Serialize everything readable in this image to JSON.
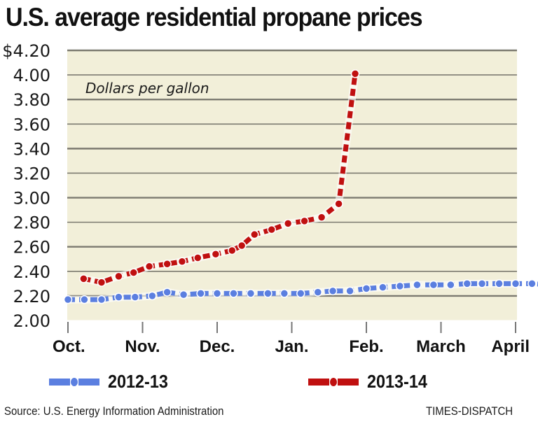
{
  "chart_data": {
    "type": "line",
    "title": "U.S. average residential propane prices",
    "unit_label": "Dollars per gallon",
    "xlabel": "",
    "ylabel": "Dollars per gallon",
    "ylim": [
      2.0,
      4.2
    ],
    "yticks": [
      2.0,
      2.2,
      2.4,
      2.6,
      2.8,
      3.0,
      3.2,
      3.4,
      3.6,
      3.8,
      4.0,
      4.2
    ],
    "ytick_labels": [
      "2.00",
      "2.20",
      "2.40",
      "2.60",
      "2.80",
      "3.00",
      "3.20",
      "3.40",
      "3.60",
      "3.80",
      "4.00",
      "$4.20"
    ],
    "x_months": [
      "Oct.",
      "Nov.",
      "Dec.",
      "Jan.",
      "Feb.",
      "March",
      "April"
    ],
    "x_unit": "months since Oct. 1",
    "xlim": [
      0,
      6
    ],
    "grid": true,
    "legend_position": "bottom",
    "series": [
      {
        "name": "2012-13",
        "color": "#5b7fe0",
        "x": [
          0.0,
          0.22,
          0.45,
          0.68,
          0.9,
          1.13,
          1.33,
          1.55,
          1.78,
          2.0,
          2.22,
          2.45,
          2.68,
          2.9,
          3.12,
          3.35,
          3.55,
          3.78,
          4.0,
          4.22,
          4.45,
          4.68,
          4.9,
          5.13,
          5.35,
          5.55,
          5.78,
          6.0,
          6.22,
          6.45,
          6.68
        ],
        "values": [
          2.17,
          2.17,
          2.17,
          2.19,
          2.19,
          2.2,
          2.23,
          2.21,
          2.22,
          2.22,
          2.22,
          2.22,
          2.22,
          2.22,
          2.22,
          2.23,
          2.24,
          2.24,
          2.26,
          2.27,
          2.28,
          2.29,
          2.29,
          2.29,
          2.3,
          2.3,
          2.3,
          2.3,
          2.3,
          2.29,
          2.28
        ]
      },
      {
        "name": "2013-14",
        "color": "#c01010",
        "x": [
          0.21,
          0.45,
          0.68,
          0.88,
          1.09,
          1.33,
          1.53,
          1.74,
          1.98,
          2.2,
          2.33,
          2.5,
          2.73,
          2.95,
          3.17,
          3.4,
          3.63,
          3.85
        ],
        "values": [
          2.34,
          2.31,
          2.36,
          2.39,
          2.44,
          2.46,
          2.48,
          2.51,
          2.54,
          2.57,
          2.61,
          2.7,
          2.74,
          2.79,
          2.81,
          2.84,
          2.95,
          4.01
        ]
      }
    ]
  },
  "legend": [
    {
      "label": "2012-13",
      "color": "#5b7fe0"
    },
    {
      "label": "2013-14",
      "color": "#c01010"
    }
  ],
  "footer": {
    "source": "Source: U.S. Energy Information Administration",
    "credit": "TIMES-DISPATCH"
  },
  "colors": {
    "plot_background": "#f2efd9",
    "gridline": "#7c7a70",
    "axis": "#777777"
  }
}
